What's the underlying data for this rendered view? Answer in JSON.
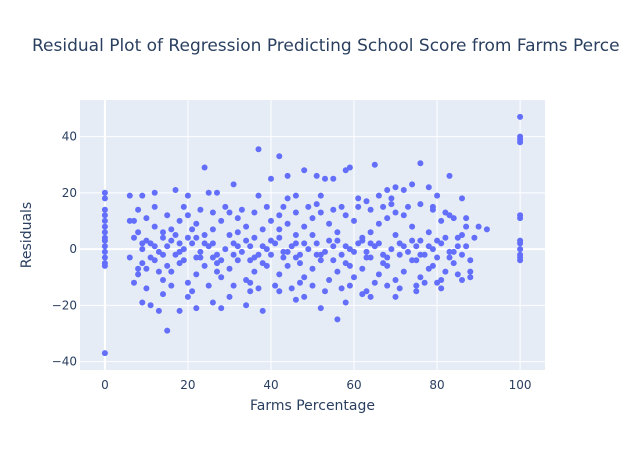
{
  "chart_data": {
    "type": "scatter",
    "title": "Residual Plot of Regression Predicting School Score from Farms Perce",
    "xlabel": "Farms Percentage",
    "ylabel": "Residuals",
    "xlim": [
      -6,
      106
    ],
    "ylim": [
      -43,
      53
    ],
    "xticks": [
      0,
      20,
      40,
      60,
      80,
      100
    ],
    "yticks": [
      -40,
      -20,
      0,
      20,
      40
    ],
    "grid": true,
    "marker_color": "#636efa",
    "plot_bg": "#e5ecf6",
    "points": [
      [
        0,
        20
      ],
      [
        0,
        18
      ],
      [
        0,
        14
      ],
      [
        0,
        12
      ],
      [
        0,
        10
      ],
      [
        0,
        8
      ],
      [
        0,
        6
      ],
      [
        0,
        4
      ],
      [
        0,
        3
      ],
      [
        0,
        1
      ],
      [
        0,
        -1
      ],
      [
        0,
        -3
      ],
      [
        0,
        -5
      ],
      [
        0,
        -6
      ],
      [
        0,
        -37
      ],
      [
        100,
        47
      ],
      [
        100,
        40
      ],
      [
        100,
        39
      ],
      [
        100,
        38
      ],
      [
        100,
        12
      ],
      [
        100,
        11
      ],
      [
        100,
        3
      ],
      [
        100,
        2
      ],
      [
        100,
        0
      ],
      [
        100,
        -2
      ],
      [
        100,
        -3
      ],
      [
        100,
        -4
      ],
      [
        37,
        35.5
      ],
      [
        42,
        33
      ],
      [
        24,
        29
      ],
      [
        65,
        30
      ],
      [
        58,
        28
      ],
      [
        59,
        29
      ],
      [
        76,
        30.5
      ],
      [
        83,
        26
      ],
      [
        48,
        28
      ],
      [
        51,
        26
      ],
      [
        40,
        25
      ],
      [
        44,
        26
      ],
      [
        53,
        25
      ],
      [
        55,
        25
      ],
      [
        31,
        23
      ],
      [
        25,
        20
      ],
      [
        27,
        20
      ],
      [
        20,
        19
      ],
      [
        6,
        19
      ],
      [
        9,
        19
      ],
      [
        17,
        21
      ],
      [
        12,
        20
      ],
      [
        37,
        19
      ],
      [
        44,
        18
      ],
      [
        46,
        19
      ],
      [
        52,
        19
      ],
      [
        61,
        18
      ],
      [
        68,
        21
      ],
      [
        70,
        22
      ],
      [
        72,
        21
      ],
      [
        74,
        23
      ],
      [
        66,
        19
      ],
      [
        78,
        22
      ],
      [
        80,
        19
      ],
      [
        86,
        18
      ],
      [
        69,
        18
      ],
      [
        63,
        17
      ],
      [
        15,
        -29
      ],
      [
        56,
        -25
      ],
      [
        52,
        -21
      ],
      [
        38,
        -22
      ],
      [
        34,
        -20
      ],
      [
        28,
        -21
      ],
      [
        22,
        -21
      ],
      [
        18,
        -22
      ],
      [
        11,
        -20
      ],
      [
        13,
        -22
      ],
      [
        9,
        -19
      ],
      [
        26,
        -19
      ],
      [
        46,
        -18
      ],
      [
        58,
        -19
      ],
      [
        64,
        -17
      ],
      [
        70,
        -17
      ],
      [
        75,
        -15
      ],
      [
        81,
        -14
      ],
      [
        86,
        -11
      ],
      [
        88,
        -8
      ],
      [
        80,
        -12
      ],
      [
        62,
        -16
      ],
      [
        48,
        -17
      ],
      [
        42,
        -15
      ],
      [
        35,
        -15
      ],
      [
        30,
        -17
      ],
      [
        20,
        -17
      ],
      [
        14,
        -16
      ],
      [
        7,
        -12
      ],
      [
        8,
        -7
      ],
      [
        6,
        -3
      ],
      [
        87,
        8
      ],
      [
        89,
        4
      ],
      [
        90,
        8
      ],
      [
        92,
        7
      ],
      [
        85,
        4
      ],
      [
        84,
        11
      ],
      [
        82,
        13
      ],
      [
        79,
        14
      ],
      [
        81,
        10
      ],
      [
        78,
        6
      ],
      [
        76,
        3
      ],
      [
        74,
        8
      ],
      [
        72,
        12
      ],
      [
        70,
        13
      ],
      [
        68,
        11
      ],
      [
        66,
        9
      ],
      [
        64,
        6
      ],
      [
        62,
        3
      ],
      [
        60,
        10
      ],
      [
        58,
        12
      ],
      [
        56,
        6
      ],
      [
        54,
        9
      ],
      [
        52,
        13
      ],
      [
        50,
        11
      ],
      [
        48,
        8
      ],
      [
        46,
        5
      ],
      [
        44,
        9
      ],
      [
        42,
        12
      ],
      [
        40,
        10
      ],
      [
        38,
        7
      ],
      [
        36,
        4
      ],
      [
        34,
        8
      ],
      [
        32,
        11
      ],
      [
        30,
        13
      ],
      [
        28,
        10
      ],
      [
        26,
        7
      ],
      [
        24,
        5
      ],
      [
        22,
        9
      ],
      [
        20,
        12
      ],
      [
        18,
        10
      ],
      [
        16,
        7
      ],
      [
        14,
        4
      ],
      [
        12,
        8
      ],
      [
        10,
        11
      ],
      [
        8,
        6
      ],
      [
        7,
        10
      ],
      [
        86,
        -2
      ],
      [
        84,
        -5
      ],
      [
        82,
        -8
      ],
      [
        80,
        -3
      ],
      [
        78,
        -7
      ],
      [
        76,
        -10
      ],
      [
        74,
        -4
      ],
      [
        72,
        -8
      ],
      [
        70,
        -11
      ],
      [
        68,
        -6
      ],
      [
        66,
        -9
      ],
      [
        64,
        -3
      ],
      [
        62,
        -7
      ],
      [
        60,
        -10
      ],
      [
        58,
        -5
      ],
      [
        56,
        -8
      ],
      [
        54,
        -11
      ],
      [
        52,
        -4
      ],
      [
        50,
        -7
      ],
      [
        48,
        -10
      ],
      [
        46,
        -3
      ],
      [
        44,
        -6
      ],
      [
        42,
        -9
      ],
      [
        40,
        -2
      ],
      [
        38,
        -5
      ],
      [
        36,
        -8
      ],
      [
        34,
        -11
      ],
      [
        32,
        -4
      ],
      [
        30,
        -7
      ],
      [
        28,
        -10
      ],
      [
        26,
        -3
      ],
      [
        24,
        -6
      ],
      [
        22,
        -9
      ],
      [
        20,
        -12
      ],
      [
        18,
        -5
      ],
      [
        16,
        -8
      ],
      [
        14,
        -11
      ],
      [
        12,
        -4
      ],
      [
        10,
        -7
      ],
      [
        8,
        -9
      ],
      [
        9,
        0
      ],
      [
        11,
        2
      ],
      [
        13,
        -1
      ],
      [
        15,
        1
      ],
      [
        17,
        -2
      ],
      [
        19,
        0
      ],
      [
        21,
        2
      ],
      [
        23,
        -1
      ],
      [
        25,
        1
      ],
      [
        27,
        -2
      ],
      [
        29,
        0
      ],
      [
        31,
        2
      ],
      [
        33,
        -1
      ],
      [
        35,
        1
      ],
      [
        37,
        -2
      ],
      [
        39,
        0
      ],
      [
        41,
        2
      ],
      [
        43,
        -1
      ],
      [
        45,
        1
      ],
      [
        47,
        -2
      ],
      [
        49,
        0
      ],
      [
        51,
        2
      ],
      [
        53,
        -1
      ],
      [
        55,
        1
      ],
      [
        57,
        -2
      ],
      [
        59,
        0
      ],
      [
        61,
        2
      ],
      [
        63,
        -1
      ],
      [
        65,
        1
      ],
      [
        67,
        -2
      ],
      [
        69,
        0
      ],
      [
        71,
        2
      ],
      [
        73,
        -1
      ],
      [
        75,
        1
      ],
      [
        77,
        -2
      ],
      [
        79,
        0
      ],
      [
        81,
        2
      ],
      [
        83,
        -1
      ],
      [
        85,
        1
      ],
      [
        10,
        3
      ],
      [
        14,
        6
      ],
      [
        18,
        2
      ],
      [
        22,
        4
      ],
      [
        26,
        2
      ],
      [
        30,
        5
      ],
      [
        34,
        3
      ],
      [
        38,
        1
      ],
      [
        42,
        4
      ],
      [
        46,
        2
      ],
      [
        50,
        5
      ],
      [
        54,
        3
      ],
      [
        58,
        1
      ],
      [
        62,
        4
      ],
      [
        66,
        2
      ],
      [
        70,
        5
      ],
      [
        74,
        3
      ],
      [
        78,
        1
      ],
      [
        82,
        4
      ],
      [
        11,
        -3
      ],
      [
        15,
        -6
      ],
      [
        19,
        -4
      ],
      [
        23,
        -3
      ],
      [
        27,
        -5
      ],
      [
        31,
        -2
      ],
      [
        35,
        -4
      ],
      [
        39,
        -6
      ],
      [
        43,
        -3
      ],
      [
        47,
        -5
      ],
      [
        51,
        -2
      ],
      [
        55,
        -4
      ],
      [
        59,
        -6
      ],
      [
        63,
        -3
      ],
      [
        67,
        -5
      ],
      [
        71,
        -2
      ],
      [
        75,
        -4
      ],
      [
        79,
        -6
      ],
      [
        83,
        -3
      ],
      [
        6,
        10
      ],
      [
        8,
        14
      ],
      [
        9,
        2
      ],
      [
        10,
        -14
      ],
      [
        12,
        15
      ],
      [
        13,
        -8
      ],
      [
        15,
        12
      ],
      [
        16,
        -13
      ],
      [
        17,
        5
      ],
      [
        19,
        15
      ],
      [
        21,
        -15
      ],
      [
        21,
        7
      ],
      [
        23,
        14
      ],
      [
        25,
        -13
      ],
      [
        26,
        13
      ],
      [
        27,
        -8
      ],
      [
        29,
        15
      ],
      [
        31,
        -13
      ],
      [
        32,
        6
      ],
      [
        33,
        14
      ],
      [
        35,
        -12
      ],
      [
        36,
        13
      ],
      [
        37,
        -14
      ],
      [
        39,
        15
      ],
      [
        41,
        -13
      ],
      [
        42,
        7
      ],
      [
        43,
        15
      ],
      [
        45,
        -14
      ],
      [
        46,
        13
      ],
      [
        47,
        -12
      ],
      [
        49,
        15
      ],
      [
        50,
        -13
      ],
      [
        51,
        16
      ],
      [
        53,
        -15
      ],
      [
        55,
        14
      ],
      [
        57,
        -14
      ],
      [
        57,
        15
      ],
      [
        59,
        -13
      ],
      [
        61,
        15
      ],
      [
        63,
        -15
      ],
      [
        64,
        14
      ],
      [
        65,
        -12
      ],
      [
        67,
        15
      ],
      [
        68,
        -13
      ],
      [
        69,
        16
      ],
      [
        71,
        -14
      ],
      [
        73,
        15
      ],
      [
        75,
        -13
      ],
      [
        76,
        16
      ],
      [
        77,
        -12
      ],
      [
        79,
        15
      ],
      [
        81,
        -11
      ],
      [
        83,
        12
      ],
      [
        85,
        -9
      ],
      [
        87,
        11
      ],
      [
        88,
        -10
      ],
      [
        7,
        4
      ],
      [
        9,
        -5
      ],
      [
        12,
        1
      ],
      [
        14,
        -2
      ],
      [
        16,
        3
      ],
      [
        18,
        -1
      ],
      [
        20,
        4
      ],
      [
        22,
        -3
      ],
      [
        24,
        2
      ],
      [
        28,
        -4
      ],
      [
        32,
        1
      ],
      [
        36,
        -3
      ],
      [
        40,
        3
      ],
      [
        44,
        -1
      ],
      [
        48,
        2
      ],
      [
        52,
        -2
      ],
      [
        56,
        3
      ],
      [
        60,
        -1
      ],
      [
        64,
        2
      ],
      [
        68,
        -3
      ],
      [
        72,
        1
      ],
      [
        76,
        -2
      ],
      [
        80,
        3
      ],
      [
        84,
        -1
      ],
      [
        86,
        5
      ],
      [
        88,
        -4
      ],
      [
        87,
        1
      ]
    ]
  }
}
